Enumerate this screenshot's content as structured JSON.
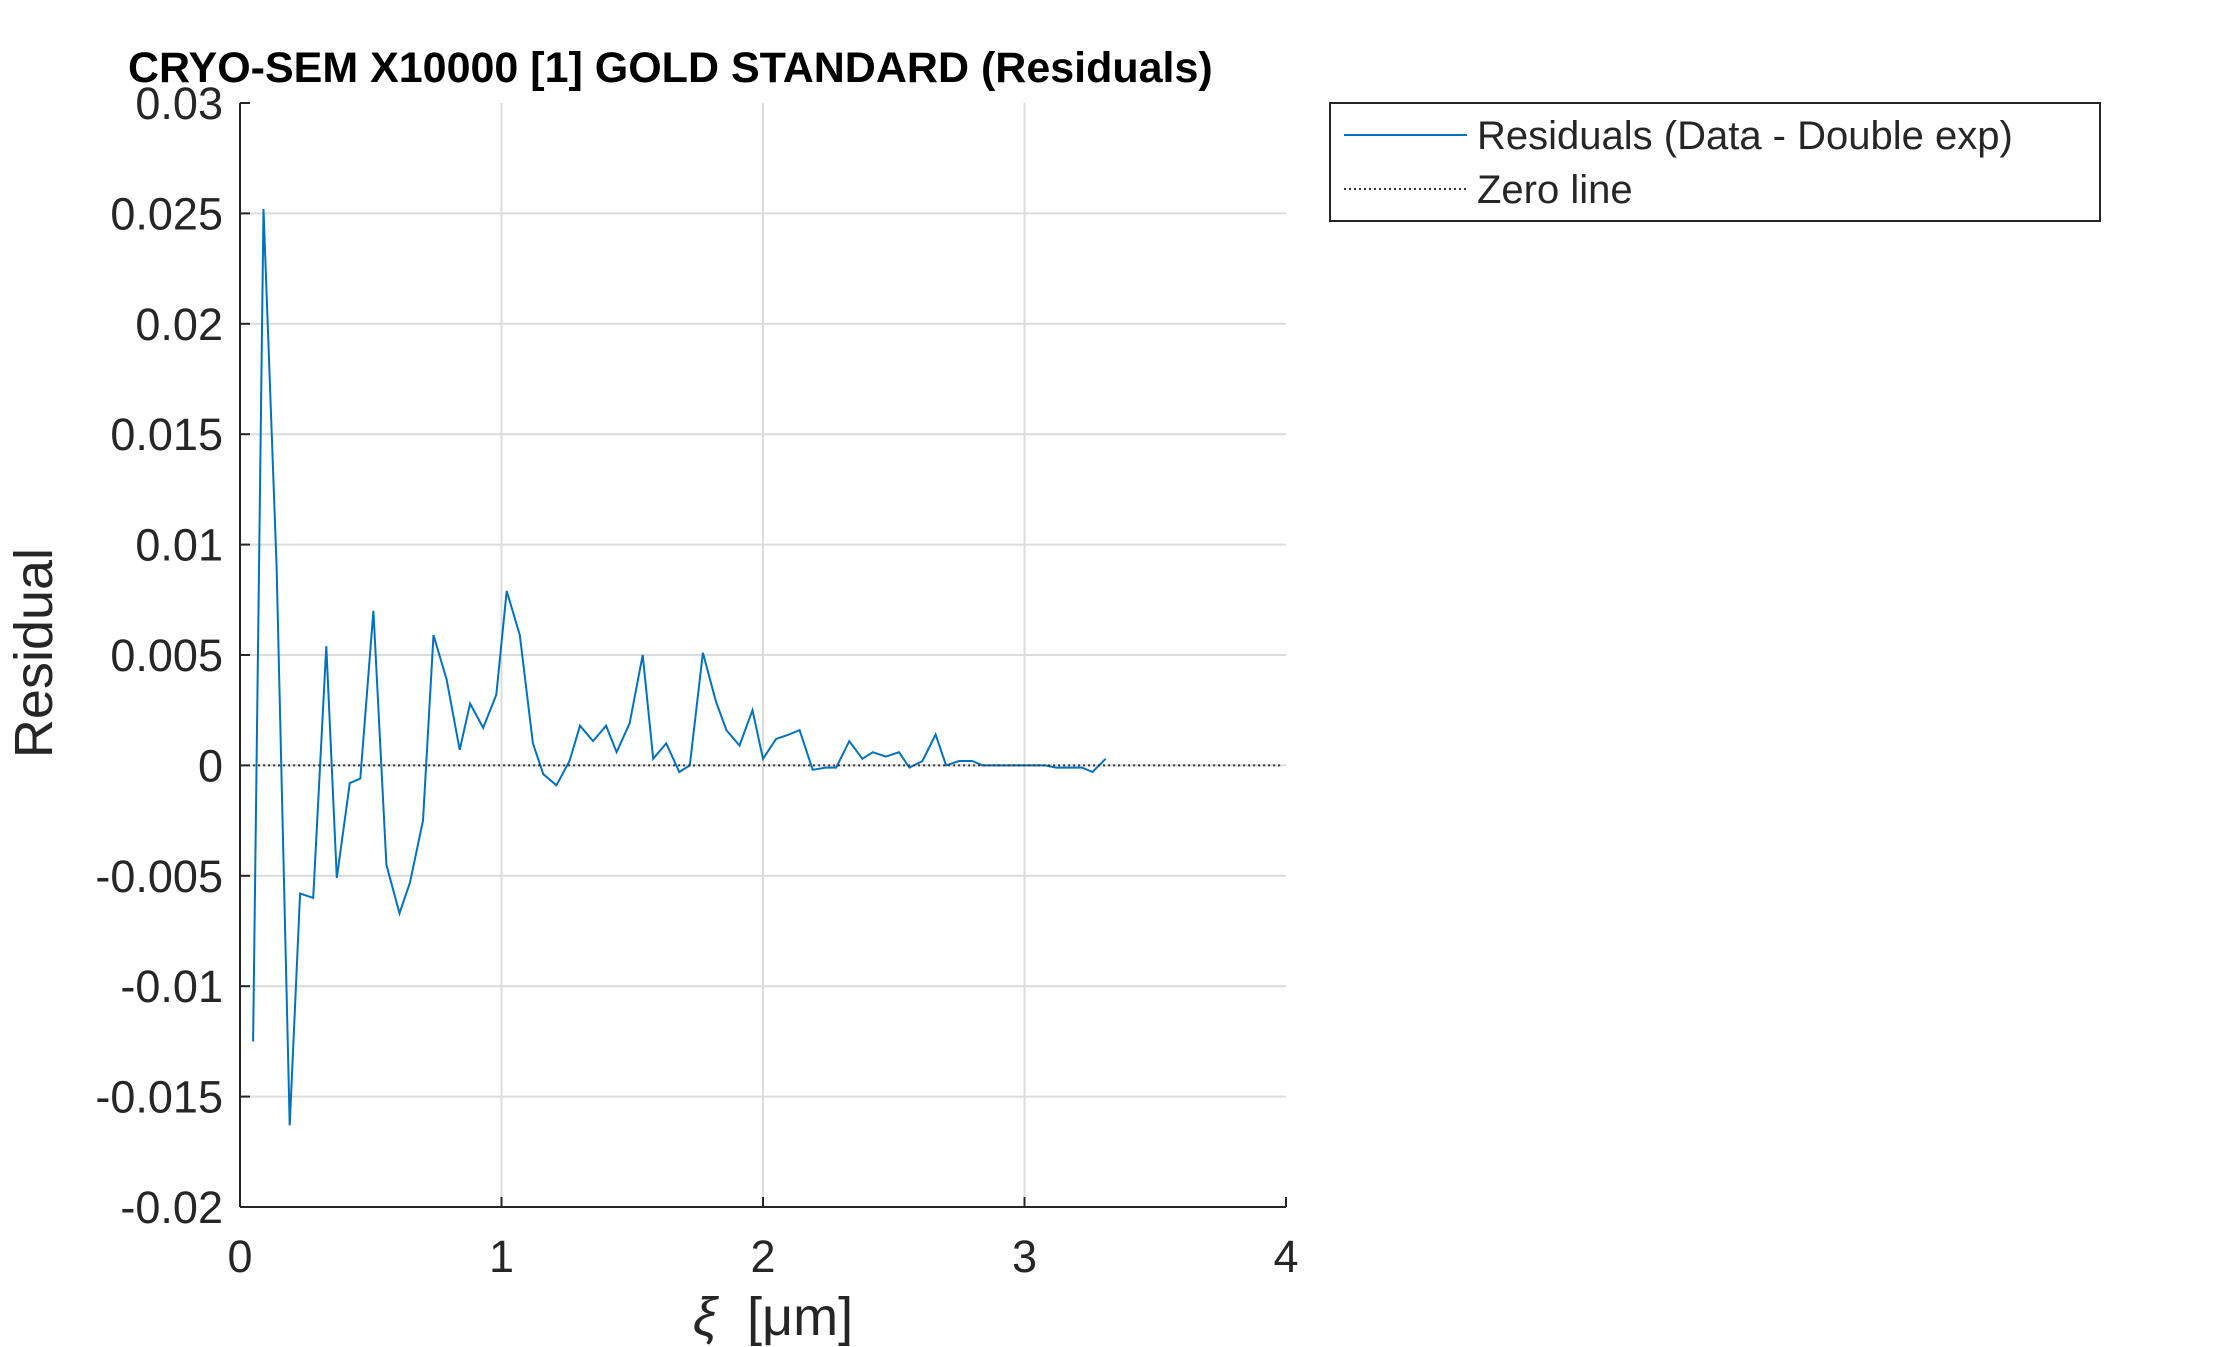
{
  "chart_data": {
    "type": "line",
    "title": "CRYO-SEM X10000 [1] GOLD STANDARD (Residuals)",
    "xlabel_symbol": "ξ",
    "xlabel_unit": "[μm]",
    "ylabel": "Residual",
    "xlim": [
      0,
      4
    ],
    "ylim": [
      -0.02,
      0.03
    ],
    "x_ticks": [
      0,
      1,
      2,
      3,
      4
    ],
    "x_tick_labels": [
      "0",
      "1",
      "2",
      "3",
      "4"
    ],
    "y_ticks": [
      -0.02,
      -0.015,
      -0.01,
      -0.005,
      0,
      0.005,
      0.01,
      0.015,
      0.02,
      0.025,
      0.03
    ],
    "y_tick_labels": [
      "-0.02",
      "-0.015",
      "-0.01",
      "-0.005",
      "0",
      "0.005",
      "0.01",
      "0.015",
      "0.02",
      "0.025",
      "0.03"
    ],
    "grid": true,
    "legend_placement": "outside-top-right",
    "series": [
      {
        "name": "Residuals (Data - Double exp)",
        "color": "#0072BD",
        "style": "solid",
        "x": [
          0.05,
          0.09,
          0.14,
          0.19,
          0.23,
          0.28,
          0.33,
          0.37,
          0.42,
          0.46,
          0.51,
          0.56,
          0.61,
          0.65,
          0.7,
          0.74,
          0.79,
          0.84,
          0.88,
          0.93,
          0.98,
          1.02,
          1.07,
          1.12,
          1.16,
          1.21,
          1.26,
          1.3,
          1.35,
          1.4,
          1.44,
          1.49,
          1.54,
          1.58,
          1.63,
          1.68,
          1.72,
          1.77,
          1.82,
          1.86,
          1.91,
          1.96,
          2.0,
          2.05,
          2.1,
          2.14,
          2.19,
          2.24,
          2.28,
          2.33,
          2.38,
          2.42,
          2.47,
          2.52,
          2.56,
          2.61,
          2.66,
          2.7,
          2.75,
          2.8,
          2.84,
          2.89,
          2.94,
          2.98,
          3.03,
          3.08,
          3.12,
          3.17,
          3.22,
          3.26,
          3.31
        ],
        "values": [
          -0.0125,
          0.0252,
          0.009,
          -0.0163,
          -0.0058,
          -0.006,
          0.0054,
          -0.0051,
          -0.0008,
          -0.0006,
          0.007,
          -0.0045,
          -0.0067,
          -0.0053,
          -0.0025,
          0.0059,
          0.0039,
          0.0007,
          0.0028,
          0.0017,
          0.0032,
          0.0079,
          0.0059,
          0.001,
          -0.0004,
          -0.0009,
          0.0002,
          0.0018,
          0.0011,
          0.0018,
          0.0006,
          0.0019,
          0.005,
          0.0003,
          0.001,
          -0.0003,
          0.0,
          0.0051,
          0.0029,
          0.0016,
          0.0009,
          0.0025,
          0.0003,
          0.0012,
          0.0014,
          0.0016,
          -0.0002,
          -0.0001,
          -0.0001,
          0.0011,
          0.0003,
          0.0006,
          0.0004,
          0.0006,
          -0.0001,
          0.0002,
          0.0014,
          0.0,
          0.0002,
          0.0002,
          0.0,
          0.0,
          0.0,
          0.0,
          0.0,
          0.0,
          -0.0001,
          -0.0001,
          -0.0001,
          -0.0003,
          0.0003
        ]
      },
      {
        "name": "Zero line",
        "color": "#333333",
        "style": "dotted",
        "x": [
          0.05,
          3.98
        ],
        "values": [
          0,
          0
        ]
      }
    ]
  }
}
